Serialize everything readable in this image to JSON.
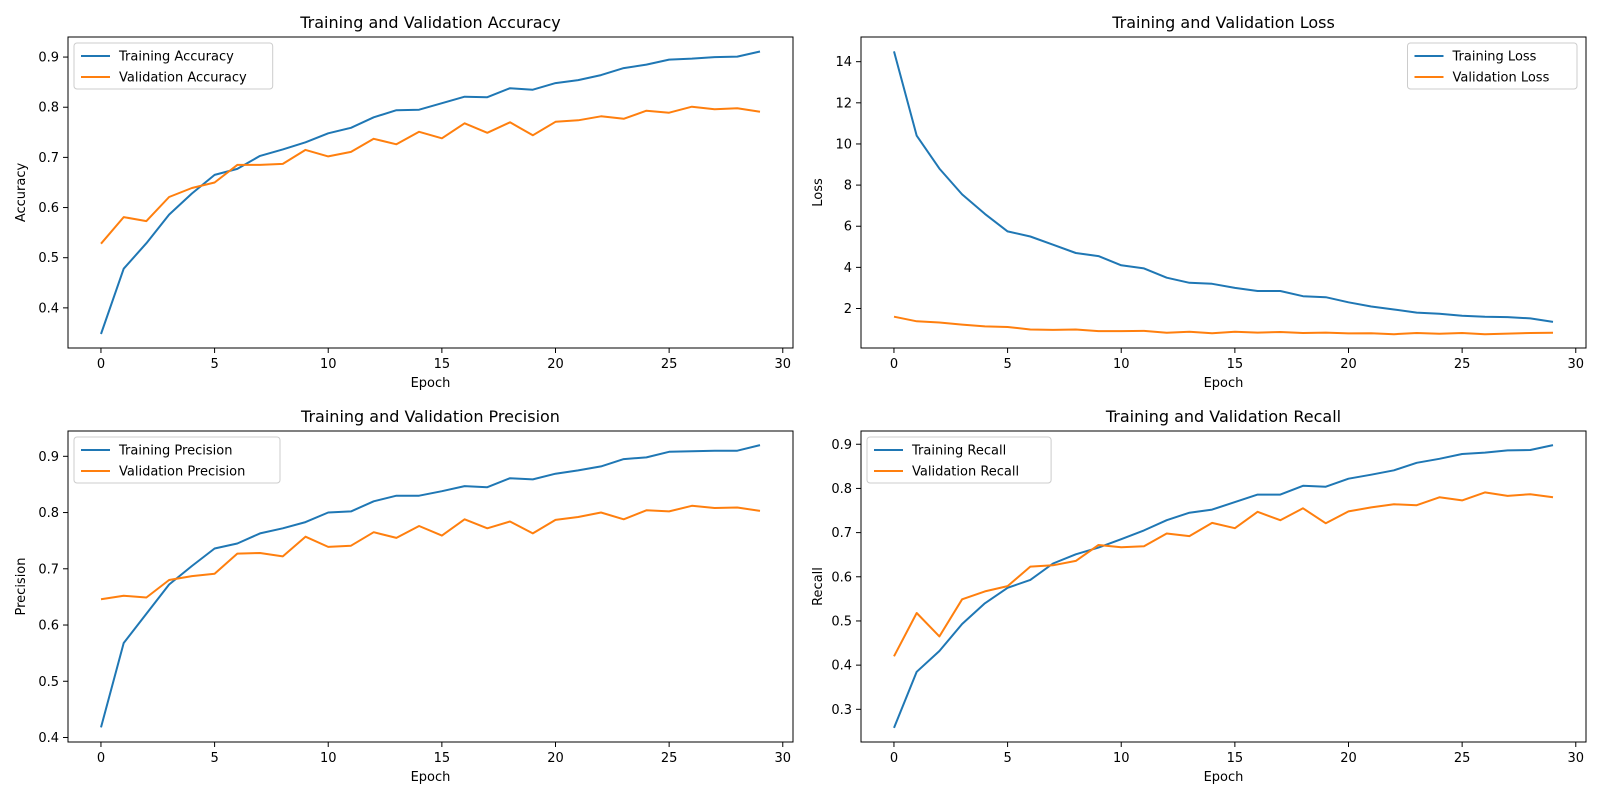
{
  "chart_data": [
    {
      "type": "line",
      "title": "Training and Validation Accuracy",
      "xlabel": "Epoch",
      "ylabel": "Accuracy",
      "xlim": [
        -1.45,
        30.45
      ],
      "ylim": [
        0.32,
        0.94
      ],
      "xticks": [
        0,
        5,
        10,
        15,
        20,
        25,
        30
      ],
      "yticks": [
        0.4,
        0.5,
        0.6,
        0.7,
        0.8,
        0.9
      ],
      "legend": "upper left",
      "x": [
        0,
        1,
        2,
        3,
        4,
        5,
        6,
        7,
        8,
        9,
        10,
        11,
        12,
        13,
        14,
        15,
        16,
        17,
        18,
        19,
        20,
        21,
        22,
        23,
        24,
        25,
        26,
        27,
        28,
        29
      ],
      "series": [
        {
          "name": "Training Accuracy",
          "color": "#1f77b4",
          "values": [
            0.348,
            0.478,
            0.529,
            0.586,
            0.628,
            0.665,
            0.677,
            0.703,
            0.716,
            0.73,
            0.748,
            0.759,
            0.78,
            0.794,
            0.795,
            0.808,
            0.821,
            0.82,
            0.838,
            0.835,
            0.848,
            0.854,
            0.864,
            0.878,
            0.885,
            0.895,
            0.897,
            0.9,
            0.901,
            0.911
          ]
        },
        {
          "name": "Validation Accuracy",
          "color": "#ff7f0e",
          "values": [
            0.528,
            0.581,
            0.573,
            0.621,
            0.639,
            0.65,
            0.685,
            0.685,
            0.687,
            0.715,
            0.702,
            0.711,
            0.737,
            0.726,
            0.751,
            0.738,
            0.768,
            0.749,
            0.77,
            0.744,
            0.771,
            0.774,
            0.782,
            0.777,
            0.793,
            0.789,
            0.801,
            0.796,
            0.798,
            0.791
          ]
        }
      ]
    },
    {
      "type": "line",
      "title": "Training and Validation Loss",
      "xlabel": "Epoch",
      "ylabel": "Loss",
      "xlim": [
        -1.45,
        30.45
      ],
      "ylim": [
        0.08,
        15.2
      ],
      "xticks": [
        0,
        5,
        10,
        15,
        20,
        25,
        30
      ],
      "yticks": [
        2,
        4,
        6,
        8,
        10,
        12,
        14
      ],
      "legend": "upper right",
      "x": [
        0,
        1,
        2,
        3,
        4,
        5,
        6,
        7,
        8,
        9,
        10,
        11,
        12,
        13,
        14,
        15,
        16,
        17,
        18,
        19,
        20,
        21,
        22,
        23,
        24,
        25,
        26,
        27,
        28,
        29
      ],
      "series": [
        {
          "name": "Training Loss",
          "color": "#1f77b4",
          "values": [
            14.5,
            10.4,
            8.8,
            7.55,
            6.6,
            5.75,
            5.5,
            5.1,
            4.7,
            4.55,
            4.1,
            3.95,
            3.5,
            3.25,
            3.2,
            3.0,
            2.85,
            2.85,
            2.6,
            2.55,
            2.3,
            2.1,
            1.95,
            1.8,
            1.75,
            1.65,
            1.6,
            1.58,
            1.52,
            1.35
          ]
        },
        {
          "name": "Validation Loss",
          "color": "#ff7f0e",
          "values": [
            1.6,
            1.38,
            1.32,
            1.22,
            1.13,
            1.1,
            0.98,
            0.96,
            0.98,
            0.9,
            0.9,
            0.91,
            0.82,
            0.87,
            0.8,
            0.87,
            0.83,
            0.86,
            0.81,
            0.83,
            0.79,
            0.8,
            0.75,
            0.81,
            0.77,
            0.81,
            0.75,
            0.78,
            0.81,
            0.82
          ]
        }
      ]
    },
    {
      "type": "line",
      "title": "Training and Validation Precision",
      "xlabel": "Epoch",
      "ylabel": "Precision",
      "xlim": [
        -1.45,
        30.45
      ],
      "ylim": [
        0.392,
        0.945
      ],
      "xticks": [
        0,
        5,
        10,
        15,
        20,
        25,
        30
      ],
      "yticks": [
        0.4,
        0.5,
        0.6,
        0.7,
        0.8,
        0.9
      ],
      "legend": "upper left",
      "x": [
        0,
        1,
        2,
        3,
        4,
        5,
        6,
        7,
        8,
        9,
        10,
        11,
        12,
        13,
        14,
        15,
        16,
        17,
        18,
        19,
        20,
        21,
        22,
        23,
        24,
        25,
        26,
        27,
        28,
        29
      ],
      "series": [
        {
          "name": "Training Precision",
          "color": "#1f77b4",
          "values": [
            0.418,
            0.568,
            0.62,
            0.672,
            0.705,
            0.736,
            0.745,
            0.763,
            0.772,
            0.783,
            0.8,
            0.802,
            0.82,
            0.83,
            0.83,
            0.838,
            0.847,
            0.845,
            0.861,
            0.859,
            0.869,
            0.875,
            0.882,
            0.895,
            0.898,
            0.908,
            0.909,
            0.91,
            0.91,
            0.92
          ]
        },
        {
          "name": "Validation Precision",
          "color": "#ff7f0e",
          "values": [
            0.646,
            0.652,
            0.649,
            0.68,
            0.687,
            0.691,
            0.727,
            0.728,
            0.722,
            0.757,
            0.739,
            0.741,
            0.765,
            0.755,
            0.776,
            0.759,
            0.788,
            0.772,
            0.784,
            0.763,
            0.787,
            0.792,
            0.8,
            0.788,
            0.804,
            0.802,
            0.812,
            0.808,
            0.809,
            0.803
          ]
        }
      ]
    },
    {
      "type": "line",
      "title": "Training and Validation Recall",
      "xlabel": "Epoch",
      "ylabel": "Recall",
      "xlim": [
        -1.45,
        30.45
      ],
      "ylim": [
        0.226,
        0.93
      ],
      "xticks": [
        0,
        5,
        10,
        15,
        20,
        25,
        30
      ],
      "yticks": [
        0.3,
        0.4,
        0.5,
        0.6,
        0.7,
        0.8,
        0.9
      ],
      "legend": "upper left",
      "x": [
        0,
        1,
        2,
        3,
        4,
        5,
        6,
        7,
        8,
        9,
        10,
        11,
        12,
        13,
        14,
        15,
        16,
        17,
        18,
        19,
        20,
        21,
        22,
        23,
        24,
        25,
        26,
        27,
        28,
        29
      ],
      "series": [
        {
          "name": "Training Recall",
          "color": "#1f77b4",
          "values": [
            0.258,
            0.385,
            0.432,
            0.493,
            0.54,
            0.575,
            0.593,
            0.63,
            0.651,
            0.666,
            0.685,
            0.705,
            0.728,
            0.745,
            0.752,
            0.769,
            0.786,
            0.786,
            0.806,
            0.804,
            0.822,
            0.831,
            0.841,
            0.858,
            0.867,
            0.878,
            0.881,
            0.886,
            0.887,
            0.898
          ]
        },
        {
          "name": "Validation Recall",
          "color": "#ff7f0e",
          "values": [
            0.42,
            0.518,
            0.465,
            0.549,
            0.567,
            0.579,
            0.623,
            0.626,
            0.636,
            0.672,
            0.667,
            0.669,
            0.698,
            0.692,
            0.722,
            0.71,
            0.747,
            0.728,
            0.755,
            0.721,
            0.748,
            0.757,
            0.764,
            0.762,
            0.78,
            0.773,
            0.791,
            0.783,
            0.787,
            0.78
          ]
        }
      ]
    }
  ]
}
